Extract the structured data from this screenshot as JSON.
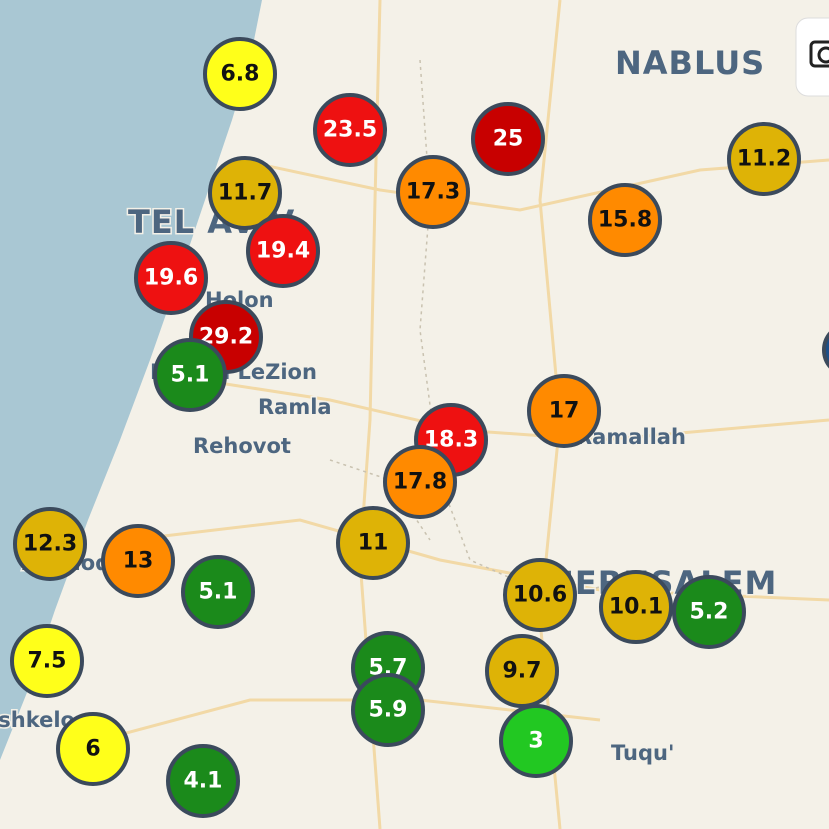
{
  "places": [
    {
      "label": "NABLUS",
      "size": "big"
    },
    {
      "label": "TEL AVIV",
      "size": "big"
    },
    {
      "label": "Holon",
      "size": "small"
    },
    {
      "label": "Rishon LeZion",
      "size": "small"
    },
    {
      "label": "Ramla",
      "size": "small"
    },
    {
      "label": "Rehovot",
      "size": "small"
    },
    {
      "label": "Ramallah",
      "size": "small"
    },
    {
      "label": "Ashdod",
      "size": "small"
    },
    {
      "label": "JERUSALEM",
      "size": "big"
    },
    {
      "label": "Ashkelon",
      "size": "small"
    },
    {
      "label": "Tuqu'",
      "size": "small"
    }
  ],
  "markers": [
    {
      "value": 6.8,
      "color": "#ffff1a",
      "text_color": "#111"
    },
    {
      "value": 23.5,
      "color": "#ee1111",
      "text_color": "#fff"
    },
    {
      "value": 25,
      "color": "#c80000",
      "text_color": "#fff"
    },
    {
      "value": 11.2,
      "color": "#deb306",
      "text_color": "#111"
    },
    {
      "value": 11.7,
      "color": "#deb306",
      "text_color": "#111"
    },
    {
      "value": 17.3,
      "color": "#ff8a00",
      "text_color": "#111"
    },
    {
      "value": 15.8,
      "color": "#ff8a00",
      "text_color": "#111"
    },
    {
      "value": 19.4,
      "color": "#ee1111",
      "text_color": "#fff"
    },
    {
      "value": 19.6,
      "color": "#ee1111",
      "text_color": "#fff"
    },
    {
      "value": 29.2,
      "color": "#c80000",
      "text_color": "#fff"
    },
    {
      "value": 5.1,
      "color": "#1b8a1b",
      "text_color": "#fff"
    },
    {
      "value": 17,
      "color": "#ff8a00",
      "text_color": "#111"
    },
    {
      "value": 18.3,
      "color": "#ee1111",
      "text_color": "#fff"
    },
    {
      "value": 17.8,
      "color": "#ff8a00",
      "text_color": "#111"
    },
    {
      "value": 12.3,
      "color": "#deb306",
      "text_color": "#111"
    },
    {
      "value": 13,
      "color": "#ff8a00",
      "text_color": "#111"
    },
    {
      "value": 11,
      "color": "#deb306",
      "text_color": "#111"
    },
    {
      "value": 5.1,
      "color": "#1b8a1b",
      "text_color": "#fff"
    },
    {
      "value": 10.6,
      "color": "#deb306",
      "text_color": "#111"
    },
    {
      "value": 10.1,
      "color": "#deb306",
      "text_color": "#111"
    },
    {
      "value": 5.2,
      "color": "#1b8a1b",
      "text_color": "#fff"
    },
    {
      "value": 7.5,
      "color": "#ffff1a",
      "text_color": "#111"
    },
    {
      "value": 5.7,
      "color": "#1b8a1b",
      "text_color": "#fff"
    },
    {
      "value": 9.7,
      "color": "#deb306",
      "text_color": "#111"
    },
    {
      "value": 5.9,
      "color": "#1b8a1b",
      "text_color": "#fff"
    },
    {
      "value": 6,
      "color": "#ffff1a",
      "text_color": "#111"
    },
    {
      "value": 3,
      "color": "#22c822",
      "text_color": "#fff"
    },
    {
      "value": 4.1,
      "color": "#1b8a1b",
      "text_color": "#fff"
    }
  ]
}
